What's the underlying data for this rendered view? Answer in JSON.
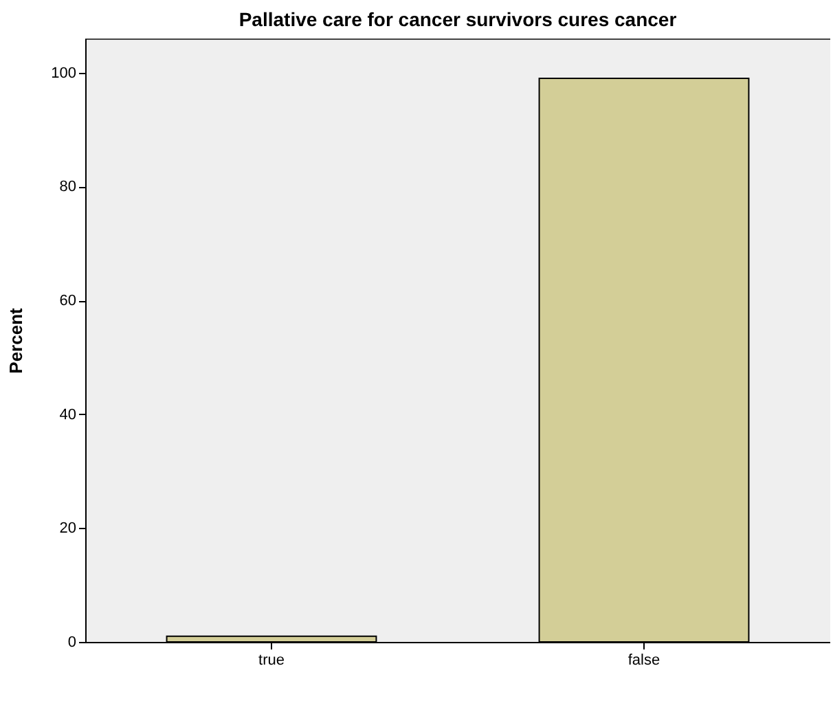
{
  "chart_data": {
    "type": "bar",
    "title": "Pallative care for cancer survivors cures cancer",
    "ylabel": "Percent",
    "categories": [
      "true",
      "false"
    ],
    "values": [
      1,
      99
    ],
    "color": "#d3ce97",
    "ylim": [
      0,
      106
    ],
    "yticks": [
      0,
      20,
      40,
      60,
      80,
      100
    ],
    "grid": false
  }
}
